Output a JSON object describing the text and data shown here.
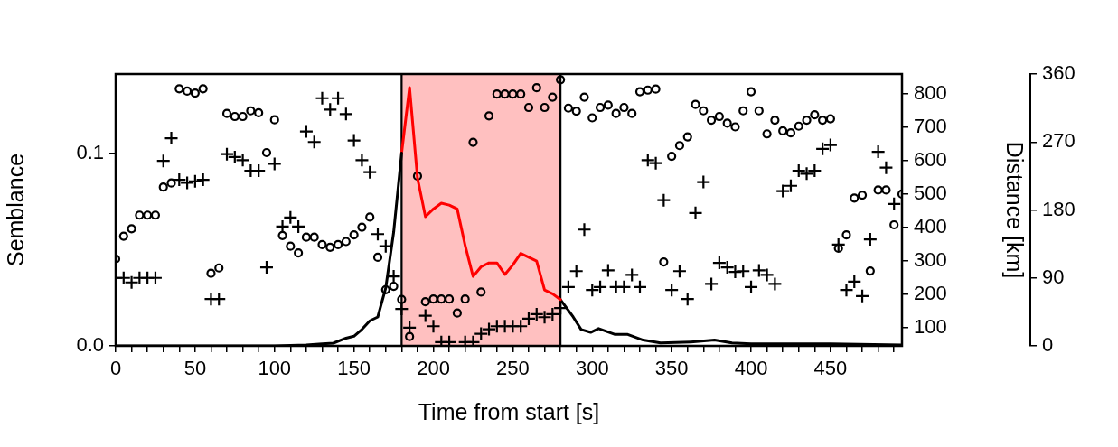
{
  "chart_data": {
    "type": "scatter",
    "xlabel": "Time from start [s]",
    "ylabel": "Semblance",
    "y2label": "Distance [km]",
    "x": [
      0,
      5,
      10,
      15,
      20,
      25,
      30,
      35,
      40,
      45,
      50,
      55,
      60,
      65,
      70,
      75,
      80,
      85,
      90,
      95,
      100,
      105,
      110,
      115,
      120,
      125,
      130,
      135,
      140,
      145,
      150,
      155,
      160,
      165,
      170,
      175,
      180,
      185,
      190,
      195,
      200,
      205,
      210,
      215,
      220,
      225,
      230,
      235,
      240,
      245,
      250,
      255,
      260,
      265,
      270,
      275,
      280,
      285,
      290,
      295,
      300,
      305,
      310,
      315,
      320,
      325,
      330,
      335,
      340,
      345,
      350,
      355,
      360,
      365,
      370,
      375,
      380,
      385,
      390,
      395,
      400,
      405,
      410,
      415,
      420,
      425,
      430,
      435,
      440,
      445,
      450,
      455,
      460,
      465,
      470,
      475,
      480,
      485,
      490,
      495
    ],
    "xlim": [
      0,
      495
    ],
    "xticks": [
      0,
      {
        "value": 10,
        "label": null
      },
      {
        "value": 20,
        "label": null
      },
      {
        "value": 30,
        "label": null
      },
      {
        "value": 40,
        "label": null
      },
      50,
      {
        "value": 60,
        "label": null
      },
      {
        "value": 70,
        "label": null
      },
      {
        "value": 80,
        "label": null
      },
      {
        "value": 90,
        "label": null
      },
      100,
      {
        "value": 110,
        "label": null
      },
      {
        "value": 120,
        "label": null
      },
      {
        "value": 130,
        "label": null
      },
      {
        "value": 140,
        "label": null
      },
      150,
      {
        "value": 160,
        "label": null
      },
      {
        "value": 170,
        "label": null
      },
      {
        "value": 180,
        "label": null
      },
      {
        "value": 190,
        "label": null
      },
      200,
      {
        "value": 210,
        "label": null
      },
      {
        "value": 220,
        "label": null
      },
      {
        "value": 230,
        "label": null
      },
      {
        "value": 240,
        "label": null
      },
      250,
      {
        "value": 260,
        "label": null
      },
      {
        "value": 270,
        "label": null
      },
      {
        "value": 280,
        "label": null
      },
      {
        "value": 290,
        "label": null
      },
      300,
      {
        "value": 310,
        "label": null
      },
      {
        "value": 320,
        "label": null
      },
      {
        "value": 330,
        "label": null
      },
      {
        "value": 340,
        "label": null
      },
      350,
      {
        "value": 360,
        "label": null
      },
      {
        "value": 370,
        "label": null
      },
      {
        "value": 380,
        "label": null
      },
      {
        "value": 390,
        "label": null
      },
      400,
      {
        "value": 410,
        "label": null
      },
      {
        "value": 420,
        "label": null
      },
      {
        "value": 430,
        "label": null
      },
      {
        "value": 440,
        "label": null
      },
      450,
      {
        "value": 460,
        "label": null
      },
      {
        "value": 470,
        "label": null
      },
      {
        "value": 480,
        "label": null
      },
      {
        "value": 490,
        "label": null
      }
    ],
    "ylim": [
      0,
      0.141
    ],
    "yticks": [
      {
        "value": 0,
        "label": "0.0"
      },
      {
        "value": 0.1,
        "label": "0.1"
      }
    ],
    "y2lim": [
      46,
      859
    ],
    "y2ticks": [
      100,
      200,
      300,
      400,
      500,
      600,
      700,
      800
    ],
    "y3lim": [
      0,
      360
    ],
    "y3ticks": [
      0,
      90,
      180,
      270,
      360
    ],
    "legend": false,
    "grid": false,
    "bands": [
      {
        "axis": "x",
        "from": 180,
        "to": 280,
        "color": "#ffc0c0"
      }
    ],
    "ref_lines": [
      {
        "axis": "x",
        "value": 180,
        "color": "#000000"
      },
      {
        "axis": "x",
        "value": 280,
        "color": "#000000"
      }
    ],
    "series": [
      {
        "type": "line",
        "axis": "y",
        "color": "#000000",
        "marker": "none",
        "x": [
          0,
          100,
          120,
          130,
          137,
          145,
          150,
          155,
          160,
          165,
          170,
          175,
          180
        ],
        "values": [
          0,
          0,
          0.0005,
          0.001,
          0.0014,
          0.004,
          0.005,
          0.0085,
          0.013,
          0.015,
          0.03,
          0.059,
          0.1
        ]
      },
      {
        "type": "line",
        "axis": "y",
        "color": "#ff0000",
        "marker": "none",
        "x": [
          180,
          185,
          190,
          195,
          200,
          205,
          210,
          215,
          220,
          225,
          230,
          235,
          240,
          245,
          250,
          255,
          260,
          265,
          270,
          275,
          280
        ],
        "values": [
          0.1,
          0.134,
          0.087,
          0.067,
          0.071,
          0.074,
          0.073,
          0.071,
          0.052,
          0.036,
          0.041,
          0.043,
          0.043,
          0.037,
          0.042,
          0.048,
          0.046,
          0.044,
          0.029,
          0.027,
          0.024
        ]
      },
      {
        "type": "line",
        "axis": "y",
        "color": "#000000",
        "marker": "none",
        "x": [
          280,
          288,
          293,
          299,
          304,
          314,
          322,
          332,
          343,
          362,
          377,
          388,
          400,
          450,
          495
        ],
        "values": [
          0.024,
          0.015,
          0.0085,
          0.007,
          0.009,
          0.006,
          0.006,
          0.003,
          0.0015,
          0.002,
          0.003,
          0.0015,
          0.001,
          0.001,
          0.0005
        ]
      },
      {
        "type": "scatter",
        "axis": "y2",
        "color": "#000000",
        "marker": "circle",
        "values": [
          306,
          374,
          396,
          437,
          437,
          437,
          521,
          533,
          815,
          808,
          802,
          815,
          263,
          279,
          741,
          732,
          732,
          749,
          743,
          624,
          722,
          376,
          344,
          324,
          371,
          371,
          349,
          341,
          349,
          358,
          378,
          401,
          431,
          311,
          214,
          224,
          185,
          74,
          554,
          178,
          186,
          186,
          186,
          144,
          186,
          655,
          207,
          734,
          799,
          799,
          799,
          799,
          759,
          818,
          759,
          790,
          842,
          757,
          748,
          790,
          728,
          759,
          766,
          741,
          759,
          741,
          806,
          811,
          814,
          297,
          613,
          645,
          671,
          768,
          749,
          721,
          732,
          712,
          701,
          749,
          806,
          749,
          680,
          721,
          689,
          683,
          703,
          721,
          737,
          721,
          725,
          338,
          378,
          488,
          497,
          270,
          512,
          512,
          408,
          500
        ]
      },
      {
        "type": "scatter",
        "axis": "y3",
        "color": "#000000",
        "marker": "cross",
        "values": [
          90,
          90,
          84,
          90,
          90,
          90,
          245,
          275,
          220,
          216,
          218,
          220,
          62,
          62,
          254,
          250,
          246,
          232,
          232,
          104,
          241,
          158,
          170,
          158,
          284,
          270,
          328,
          313,
          328,
          307,
          272,
          246,
          230,
          148,
          132,
          92,
          49,
          24,
          null,
          40,
          26,
          5,
          5,
          null,
          5,
          5,
          16,
          22,
          26,
          26,
          26,
          26,
          36,
          42,
          38,
          42,
          50,
          78,
          99,
          154,
          74,
          78,
          100,
          78,
          78,
          94,
          78,
          246,
          242,
          193,
          74,
          99,
          62,
          176,
          217,
          82,
          110,
          104,
          98,
          99,
          78,
          100,
          94,
          82,
          205,
          212,
          232,
          228,
          232,
          261,
          266,
          134,
          74,
          85,
          66,
          141,
          257,
          236,
          188,
          null
        ]
      }
    ]
  }
}
